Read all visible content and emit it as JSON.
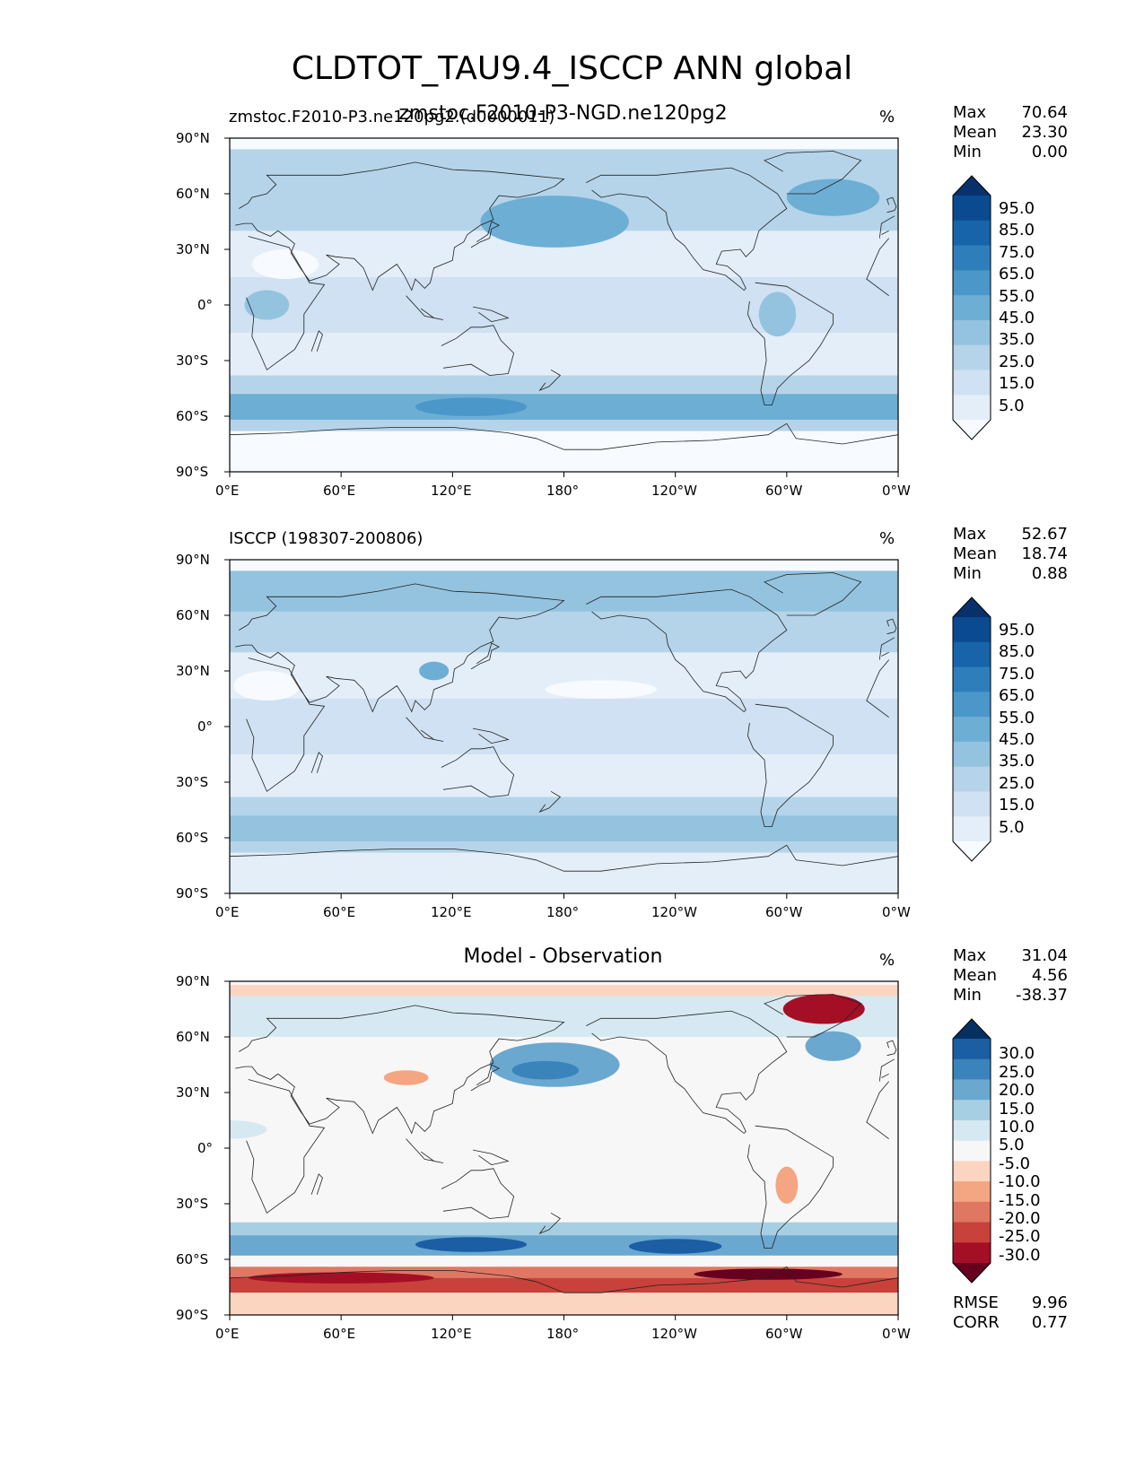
{
  "title": "CLDTOT_TAU9.4_ISCCP ANN global",
  "lat_ticks": [
    "90°N",
    "60°N",
    "30°N",
    "0°",
    "30°S",
    "60°S",
    "90°S"
  ],
  "lon_ticks": [
    "0°E",
    "60°E",
    "120°E",
    "180°",
    "120°W",
    "60°W",
    "0°W"
  ],
  "colors": {
    "ocean_blue_scale": [
      "#f7fbff",
      "#e3eef9",
      "#cfe1f2",
      "#b5d4e9",
      "#93c3df",
      "#6daed5",
      "#4b97c9",
      "#2f7ebc",
      "#1864aa",
      "#0a4a90",
      "#08306b"
    ],
    "diff_scale": [
      "#67001f",
      "#a50f26",
      "#c8413b",
      "#e07763",
      "#f4a582",
      "#fbd5c0",
      "#f7f7f7",
      "#d6e9f2",
      "#a6cfe4",
      "#6aa8d0",
      "#3a84bb",
      "#1b5ea4",
      "#053061"
    ]
  },
  "panels": [
    {
      "id": "test",
      "subtitle_left": "zmstoc.F2010-P3.ne120pg2.(d0000011)",
      "subtitle_center": "zmstoc.F2010-P3-NGD.ne120pg2",
      "units": "%",
      "stats": [
        {
          "label": "Max",
          "value": "70.64"
        },
        {
          "label": "Mean",
          "value": "23.30"
        },
        {
          "label": "Min",
          "value": "0.00"
        }
      ],
      "colorbar_labels": [
        "95.0",
        "85.0",
        "75.0",
        "65.0",
        "55.0",
        "45.0",
        "35.0",
        "25.0",
        "15.0",
        "5.0"
      ],
      "extra_stats": []
    },
    {
      "id": "reference",
      "subtitle_left": "ISCCP (198307-200806)",
      "subtitle_center": "",
      "units": "%",
      "stats": [
        {
          "label": "Max",
          "value": "52.67"
        },
        {
          "label": "Mean",
          "value": "18.74"
        },
        {
          "label": "Min",
          "value": "0.88"
        }
      ],
      "colorbar_labels": [
        "95.0",
        "85.0",
        "75.0",
        "65.0",
        "55.0",
        "45.0",
        "35.0",
        "25.0",
        "15.0",
        "5.0"
      ],
      "extra_stats": []
    },
    {
      "id": "diff",
      "subtitle_left": "",
      "subtitle_center": "Model - Observation",
      "units": "%",
      "stats": [
        {
          "label": "Max",
          "value": "31.04"
        },
        {
          "label": "Mean",
          "value": "4.56"
        },
        {
          "label": "Min",
          "value": "-38.37"
        }
      ],
      "colorbar_labels": [
        "30.0",
        "25.0",
        "20.0",
        "15.0",
        "10.0",
        "5.0",
        "-5.0",
        "-10.0",
        "-15.0",
        "-20.0",
        "-25.0",
        "-30.0"
      ],
      "extra_stats": [
        {
          "label": "RMSE",
          "value": "9.96"
        },
        {
          "label": "CORR",
          "value": "0.77"
        }
      ]
    }
  ]
}
